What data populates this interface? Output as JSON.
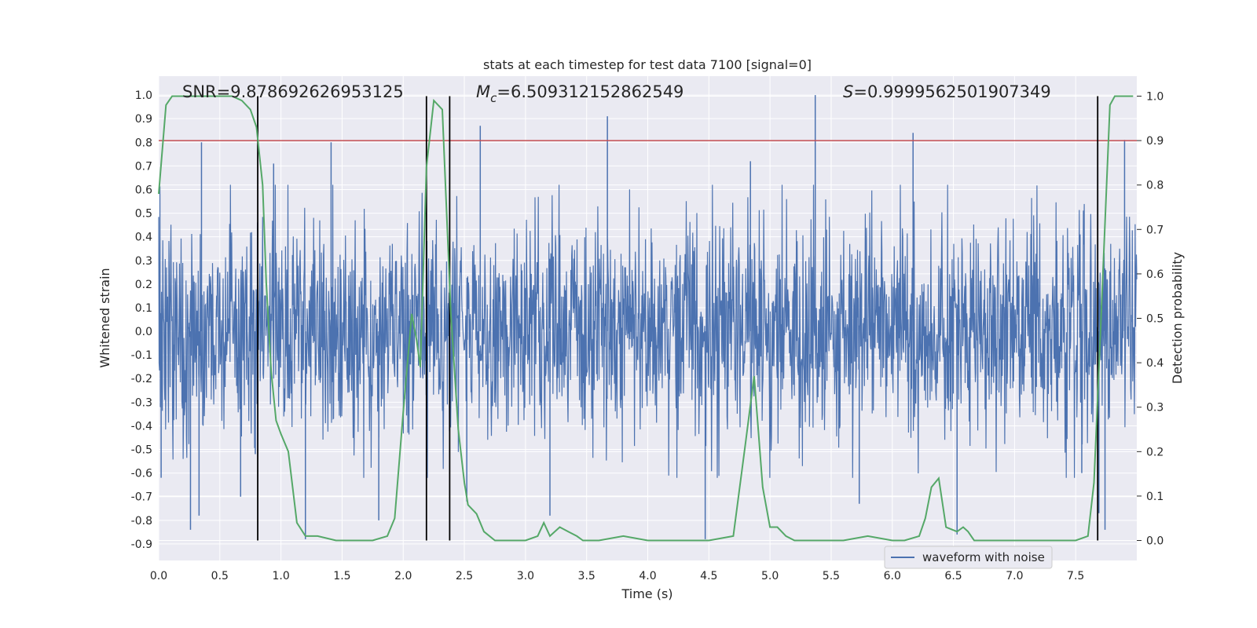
{
  "chart_data": {
    "type": "line",
    "title": "stats at each timestep for test data 7100 [signal=0]",
    "xlabel": "Time (s)",
    "ylabel_left": "Whitened strain",
    "ylabel_right": "Detection probability",
    "xlim": [
      0.0,
      8.0
    ],
    "ylim_left": [
      -0.97,
      1.08
    ],
    "ylim_right": [
      -0.045,
      1.045
    ],
    "x_ticks": [
      "0.0",
      "0.5",
      "1.0",
      "1.5",
      "2.0",
      "2.5",
      "3.0",
      "3.5",
      "4.0",
      "4.5",
      "5.0",
      "5.5",
      "6.0",
      "6.5",
      "7.0",
      "7.5"
    ],
    "y_ticks_left": [
      "1.0",
      "0.9",
      "0.8",
      "0.7",
      "0.6",
      "0.5",
      "0.4",
      "0.3",
      "0.2",
      "0.1",
      "0.0",
      "-0.1",
      "-0.2",
      "-0.3",
      "-0.4",
      "-0.5",
      "-0.6",
      "-0.7",
      "-0.8",
      "-0.9"
    ],
    "y_ticks_right": [
      "1.0",
      "0.9",
      "0.8",
      "0.7",
      "0.6",
      "0.5",
      "0.4",
      "0.3",
      "0.2",
      "0.1",
      "0.0"
    ],
    "grid": true,
    "legend_position": "bottom-right",
    "annotations": {
      "snr": "SNR=9.878692626953125",
      "mc_symbol": "M",
      "mc_sub": "c",
      "mc_value": "=6.509312152862549",
      "s_symbol": "S",
      "s_value": "=0.9999562501907349"
    },
    "threshold_probability": 0.9,
    "vertical_lines_x": [
      0.81,
      2.19,
      2.38,
      7.68
    ],
    "series": [
      {
        "name": "waveform with noise",
        "color": "#4c72b0",
        "envelope_typical": 0.42,
        "spikes": [
          {
            "x": 0.35,
            "y": 0.8
          },
          {
            "x": 0.26,
            "y": -0.84
          },
          {
            "x": 0.33,
            "y": -0.78
          },
          {
            "x": 0.67,
            "y": -0.7
          },
          {
            "x": 0.79,
            "y": -0.52
          },
          {
            "x": 0.94,
            "y": 0.71
          },
          {
            "x": 1.2,
            "y": -0.88
          },
          {
            "x": 1.41,
            "y": 0.8
          },
          {
            "x": 1.8,
            "y": -0.8
          },
          {
            "x": 2.63,
            "y": 0.87
          },
          {
            "x": 2.52,
            "y": -0.72
          },
          {
            "x": 3.2,
            "y": -0.78
          },
          {
            "x": 3.67,
            "y": 0.91
          },
          {
            "x": 4.47,
            "y": -0.88
          },
          {
            "x": 4.84,
            "y": 0.72
          },
          {
            "x": 5.37,
            "y": 1.0
          },
          {
            "x": 5.73,
            "y": -0.73
          },
          {
            "x": 6.17,
            "y": 0.84
          },
          {
            "x": 6.53,
            "y": -0.86
          },
          {
            "x": 7.69,
            "y": -0.77
          },
          {
            "x": 7.74,
            "y": -0.84
          },
          {
            "x": 7.9,
            "y": 0.81
          },
          {
            "x": 7.55,
            "y": -0.6
          },
          {
            "x": 0.02,
            "y": -0.62
          }
        ]
      },
      {
        "name": "detection probability",
        "axis": "right",
        "color": "#55a868",
        "x": [
          0.0,
          0.06,
          0.11,
          0.2,
          0.3,
          0.4,
          0.5,
          0.6,
          0.68,
          0.75,
          0.8,
          0.85,
          0.88,
          0.92,
          0.96,
          1.0,
          1.06,
          1.13,
          1.2,
          1.3,
          1.45,
          1.6,
          1.75,
          1.87,
          1.93,
          2.0,
          2.07,
          2.11,
          2.14,
          2.19,
          2.25,
          2.32,
          2.39,
          2.45,
          2.5,
          2.53,
          2.6,
          2.66,
          2.75,
          2.85,
          3.0,
          3.1,
          3.15,
          3.2,
          3.28,
          3.35,
          3.42,
          3.47,
          3.6,
          3.8,
          4.0,
          4.2,
          4.5,
          4.7,
          4.8,
          4.87,
          4.94,
          5.0,
          5.06,
          5.13,
          5.2,
          5.27,
          5.4,
          5.6,
          5.8,
          6.0,
          6.1,
          6.22,
          6.27,
          6.32,
          6.38,
          6.44,
          6.53,
          6.58,
          6.62,
          6.67,
          6.73,
          6.8,
          6.9,
          7.1,
          7.3,
          7.5,
          7.6,
          7.65,
          7.7,
          7.78,
          7.82,
          7.86,
          7.9,
          7.97
        ],
        "y": [
          0.78,
          0.98,
          1.0,
          1.0,
          1.0,
          1.0,
          1.0,
          1.0,
          0.99,
          0.97,
          0.93,
          0.8,
          0.58,
          0.38,
          0.27,
          0.24,
          0.2,
          0.04,
          0.01,
          0.01,
          0.0,
          0.0,
          0.0,
          0.01,
          0.05,
          0.29,
          0.51,
          0.45,
          0.39,
          0.84,
          0.99,
          0.97,
          0.51,
          0.25,
          0.13,
          0.08,
          0.06,
          0.02,
          0.0,
          0.0,
          0.0,
          0.01,
          0.04,
          0.01,
          0.03,
          0.02,
          0.01,
          0.0,
          0.0,
          0.01,
          0.0,
          0.0,
          0.0,
          0.01,
          0.22,
          0.37,
          0.12,
          0.03,
          0.03,
          0.01,
          0.0,
          0.0,
          0.0,
          0.0,
          0.01,
          0.0,
          0.0,
          0.01,
          0.05,
          0.12,
          0.14,
          0.03,
          0.02,
          0.03,
          0.02,
          0.0,
          0.0,
          0.0,
          0.0,
          0.0,
          0.0,
          0.0,
          0.01,
          0.13,
          0.45,
          0.98,
          1.0,
          1.0,
          1.0,
          1.0
        ]
      }
    ]
  }
}
